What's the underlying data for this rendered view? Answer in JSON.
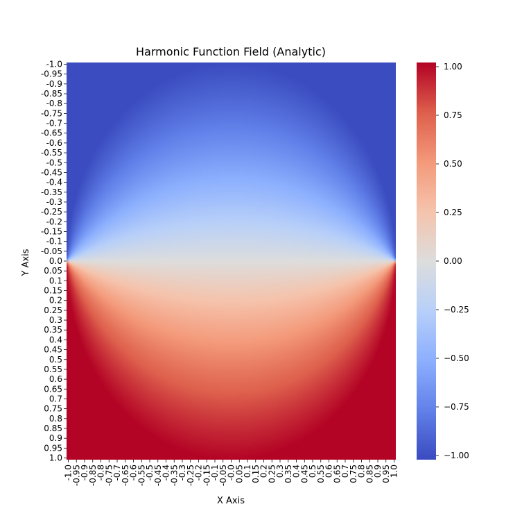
{
  "chart_data": {
    "type": "heatmap",
    "title": "Harmonic Function Field (Analytic)",
    "xlabel": "X Axis",
    "ylabel": "Y Axis",
    "x_tick_labels": [
      "-1.0",
      "-0.95",
      "-0.9",
      "-0.85",
      "-0.8",
      "-0.75",
      "-0.7",
      "-0.65",
      "-0.6",
      "-0.55",
      "-0.5",
      "-0.45",
      "-0.4",
      "-0.35",
      "-0.3",
      "-0.25",
      "-0.2",
      "-0.15",
      "-0.1",
      "-0.05",
      "-0.0",
      "0.05",
      "0.1",
      "0.15",
      "0.2",
      "0.25",
      "0.3",
      "0.35",
      "0.4",
      "0.45",
      "0.5",
      "0.55",
      "0.6",
      "0.65",
      "0.7",
      "0.75",
      "0.8",
      "0.85",
      "0.9",
      "0.95",
      "1.0"
    ],
    "y_tick_labels": [
      "-1.0",
      "-0.95",
      "-0.9",
      "-0.85",
      "-0.8",
      "-0.75",
      "-0.7",
      "-0.65",
      "-0.6",
      "-0.55",
      "-0.5",
      "-0.45",
      "-0.4",
      "-0.35",
      "-0.3",
      "-0.25",
      "-0.2",
      "-0.15",
      "-0.1",
      "-0.05",
      "0.0",
      "0.05",
      "0.1",
      "0.15",
      "0.2",
      "0.25",
      "0.3",
      "0.35",
      "0.4",
      "0.45",
      "0.5",
      "0.55",
      "0.6",
      "0.65",
      "0.7",
      "0.75",
      "0.8",
      "0.85",
      "0.9",
      "0.95",
      "1.0"
    ],
    "x_range": [
      -1.0,
      1.0
    ],
    "y_range": [
      -1.0,
      1.0
    ],
    "y_direction": "top-to-bottom increasing",
    "function": "u(x,y) = sign(y) inside unit disk boundary; analytic harmonic: (2/pi)*atan(2y/(1-x^2-y^2)), clamped to ±1 outside",
    "colorbar": {
      "colormap": "coolwarm",
      "min": -1.0,
      "max": 1.0,
      "ticks": [
        1.0,
        0.75,
        0.5,
        0.25,
        0.0,
        -0.25,
        -0.5,
        -0.75,
        -1.0
      ],
      "tick_labels": [
        "1.00",
        "0.75",
        "0.50",
        "0.25",
        "0.00",
        "−0.25",
        "−0.50",
        "−0.75",
        "−1.00"
      ]
    },
    "grid": false
  }
}
